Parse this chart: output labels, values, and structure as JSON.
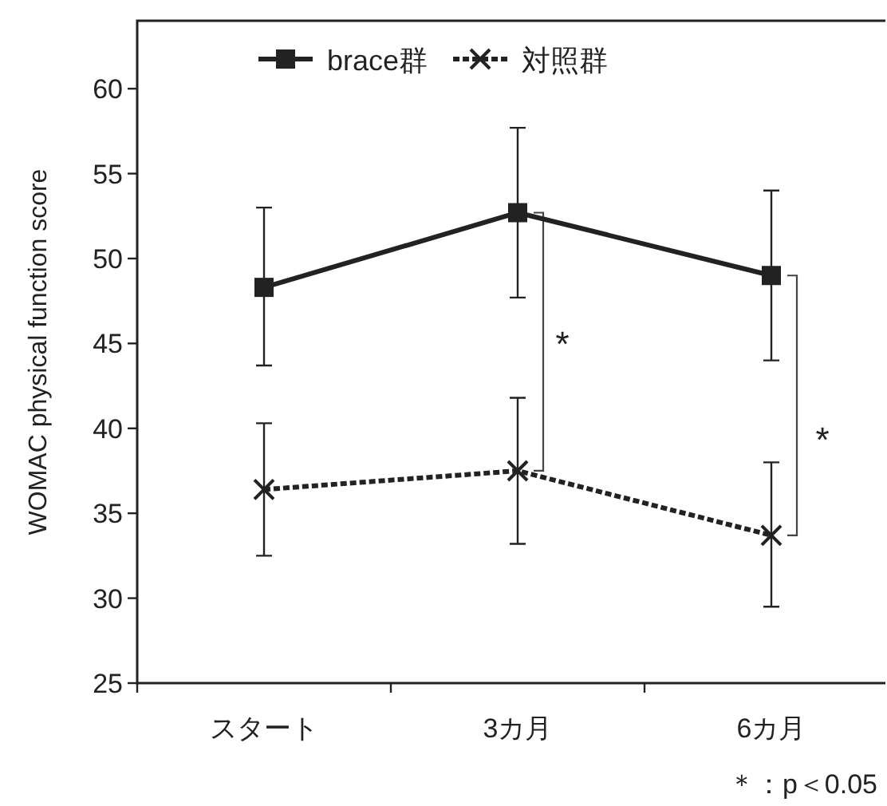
{
  "chart_data": {
    "type": "line",
    "ylabel": "WOMAC physical function score",
    "categories": [
      "スタート",
      "3カ月",
      "6カ月"
    ],
    "ylim": [
      25,
      64
    ],
    "yticks": [
      25,
      30,
      35,
      40,
      45,
      50,
      55,
      60
    ],
    "legend": "top",
    "series": [
      {
        "name": "brace群",
        "color": "#222222",
        "marker": "square",
        "line_style": "solid",
        "values": [
          48.3,
          52.7,
          49.0
        ],
        "errors": [
          [
            43.7,
            53.0
          ],
          [
            47.7,
            57.7
          ],
          [
            44.0,
            54.0
          ]
        ]
      },
      {
        "name": "対照群",
        "color": "#222222",
        "marker": "cross",
        "line_style": "dashed",
        "values": [
          36.4,
          37.5,
          33.7
        ],
        "errors": [
          [
            32.5,
            40.3
          ],
          [
            33.2,
            41.8
          ],
          [
            29.5,
            38.0
          ]
        ]
      }
    ],
    "annotations": [
      "*",
      "*",
      "＊：p＜0.05"
    ]
  }
}
